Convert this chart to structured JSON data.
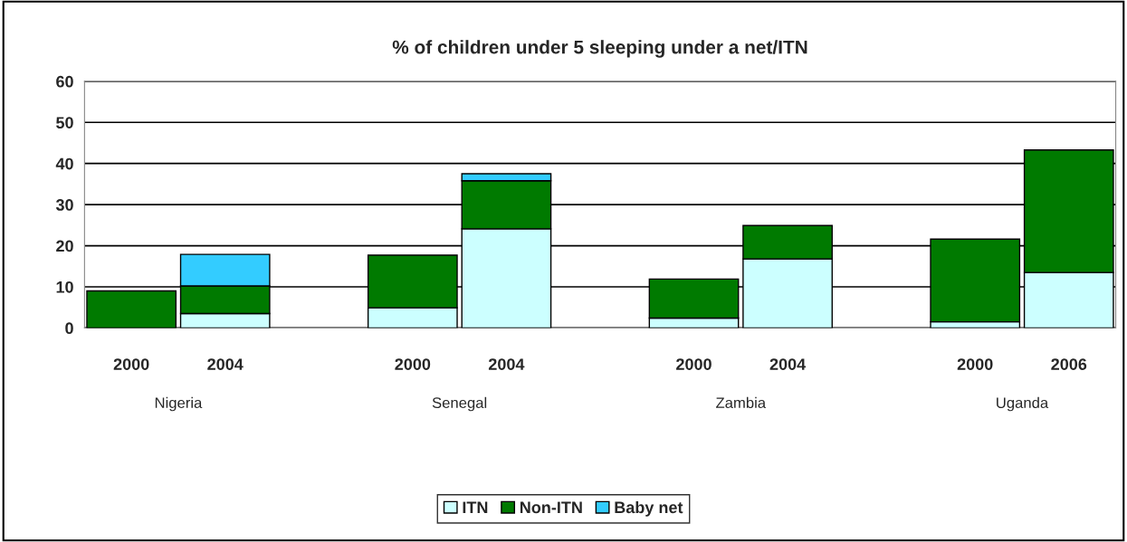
{
  "chart_data": {
    "type": "bar",
    "title": "% of children under 5 sleeping under a net/ITN",
    "stacked": true,
    "categories": [
      "2000",
      "2004",
      null,
      "2000",
      "2004",
      null,
      "2000",
      "2004",
      null,
      "2000",
      "2006"
    ],
    "series": [
      {
        "name": "ITN",
        "color": "#ccffff",
        "values": [
          null,
          3.5,
          null,
          4.9,
          24.1,
          null,
          2.4,
          16.8,
          null,
          1.5,
          13.5
        ]
      },
      {
        "name": "Non-ITN",
        "color": "#007a00",
        "values": [
          9.0,
          6.7,
          null,
          12.8,
          11.7,
          null,
          9.5,
          8.1,
          null,
          20.1,
          29.8
        ]
      },
      {
        "name": "Baby net",
        "color": "#33ccff",
        "values": [
          null,
          7.7,
          null,
          null,
          1.7,
          null,
          null,
          null,
          null,
          null,
          null
        ]
      }
    ],
    "annotations": [
      "Nigeria",
      "Senegal",
      "Zambia",
      "Uganda"
    ],
    "ylim": [
      0,
      60
    ],
    "yticks": [
      0,
      10,
      20,
      30,
      40,
      50,
      60
    ],
    "grid": "y",
    "legend": "bottom"
  }
}
